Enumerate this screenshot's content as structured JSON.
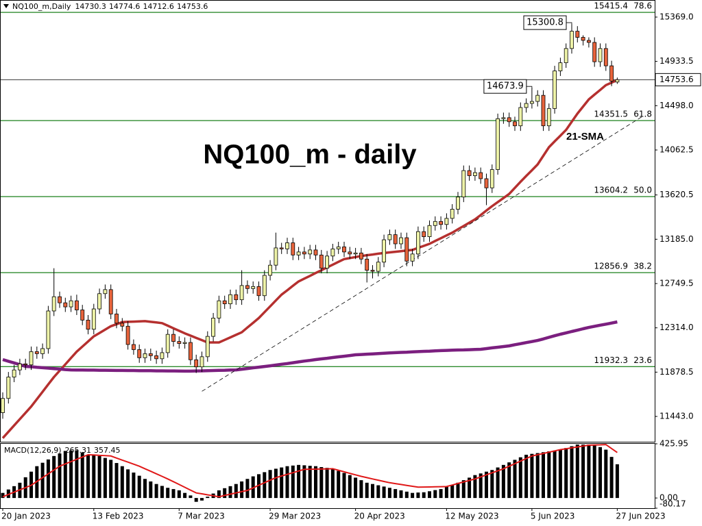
{
  "chart_data": [
    {
      "type": "candlestick",
      "title": "NQ100_m - daily",
      "symbol": "NQ100_m,Daily",
      "up_color": "#eef3a8",
      "down_color": "#e8643c",
      "fib_color": "#2e8b2e",
      "categories": [
        "20 Jan 2023",
        null,
        null,
        null,
        null,
        null,
        null,
        null,
        null,
        null,
        null,
        null,
        null,
        null,
        null,
        null,
        "13 Feb 2023",
        null,
        null,
        null,
        null,
        null,
        null,
        null,
        null,
        null,
        null,
        null,
        null,
        null,
        null,
        "7 Mar 2023",
        null,
        null,
        null,
        null,
        null,
        null,
        null,
        null,
        null,
        null,
        null,
        null,
        null,
        null,
        null,
        "29 Mar 2023",
        null,
        null,
        null,
        null,
        null,
        null,
        null,
        null,
        null,
        null,
        null,
        null,
        null,
        null,
        "20 Apr 2023",
        null,
        null,
        null,
        null,
        null,
        null,
        null,
        null,
        null,
        null,
        null,
        null,
        null,
        null,
        null,
        "12 May 2023",
        null,
        null,
        null,
        null,
        null,
        null,
        null,
        null,
        null,
        null,
        null,
        null,
        null,
        null,
        "5 Jun 2023",
        null,
        null,
        null,
        null,
        null,
        null,
        null,
        null,
        null,
        null,
        null,
        null,
        null,
        null,
        "27 Jun 2023"
      ],
      "open": [
        11480,
        11620,
        11830,
        11900,
        11960,
        11950,
        12080,
        12060,
        12110,
        12480,
        12620,
        12560,
        12520,
        12580,
        12490,
        12390,
        12300,
        12500,
        12650,
        12690,
        12450,
        12360,
        12330,
        12150,
        12100,
        12020,
        12060,
        12040,
        12010,
        12070,
        12250,
        12180,
        12160,
        12170,
        12000,
        11930,
        12030,
        12230,
        12410,
        12580,
        12550,
        12640,
        12590,
        12730,
        12700,
        12720,
        12630,
        12830,
        12930,
        13100,
        13090,
        13150,
        13030,
        13060,
        13040,
        13080,
        13030,
        12900,
        13020,
        13090,
        13110,
        13060,
        13040,
        13050,
        12990,
        12880,
        12870,
        12960,
        13180,
        13230,
        13140,
        13200,
        12970,
        13040,
        13260,
        13210,
        13320,
        13360,
        13330,
        13390,
        13480,
        13600,
        13860,
        13810,
        13840,
        13780,
        13690,
        13870,
        14370,
        14380,
        14340,
        14300,
        14480,
        14520,
        14540,
        14600,
        14300,
        14470,
        14840,
        14920,
        15060,
        15230,
        15170,
        15140,
        15120,
        14930,
        15060,
        14890,
        14730.3
      ],
      "high": [
        11680,
        11880,
        11950,
        12010,
        12010,
        12130,
        12130,
        12160,
        12530,
        12900,
        12670,
        12610,
        12630,
        12640,
        12540,
        12440,
        12550,
        12700,
        12740,
        12740,
        12500,
        12410,
        12380,
        12200,
        12150,
        12110,
        12110,
        12090,
        12120,
        12300,
        12300,
        12230,
        12220,
        12220,
        12050,
        12080,
        12280,
        12460,
        12630,
        12630,
        12690,
        12690,
        12880,
        12780,
        12770,
        12770,
        12880,
        12980,
        13250,
        13150,
        13200,
        13200,
        13110,
        13110,
        13130,
        13130,
        13080,
        13070,
        13140,
        13160,
        13160,
        13110,
        13100,
        13100,
        13040,
        12930,
        13010,
        13230,
        13280,
        13280,
        13250,
        13250,
        13090,
        13310,
        13310,
        13370,
        13410,
        13410,
        13440,
        13530,
        13650,
        13910,
        13910,
        13890,
        13890,
        13830,
        13920,
        14420,
        14430,
        14430,
        14390,
        14530,
        14570,
        14673.9,
        14650,
        14650,
        14520,
        14890,
        14970,
        15110,
        15300.8,
        15280,
        15190,
        15170,
        15170,
        15110,
        15110,
        14940,
        14774.6
      ],
      "low": [
        11420,
        11570,
        11780,
        11850,
        11900,
        11900,
        12010,
        12010,
        12060,
        12430,
        12510,
        12470,
        12470,
        12440,
        12340,
        12250,
        12250,
        12450,
        12600,
        12400,
        12310,
        12280,
        12100,
        12050,
        11970,
        11970,
        11990,
        11960,
        11960,
        12020,
        12130,
        12110,
        12110,
        11950,
        11870,
        11880,
        11980,
        12180,
        12360,
        12500,
        12500,
        12540,
        12540,
        12650,
        12650,
        12580,
        12580,
        12780,
        12880,
        13040,
        13040,
        12980,
        12980,
        12990,
        12990,
        12980,
        12850,
        12850,
        12970,
        13040,
        13010,
        12990,
        12990,
        12940,
        12760,
        12800,
        12820,
        12910,
        13130,
        13090,
        13090,
        12920,
        12920,
        12990,
        13160,
        13160,
        13270,
        13280,
        13280,
        13340,
        13430,
        13550,
        13760,
        13760,
        13730,
        13520,
        13640,
        13820,
        14320,
        14290,
        14250,
        14250,
        14430,
        14470,
        14490,
        14250,
        14250,
        14420,
        14790,
        14870,
        15010,
        15120,
        15090,
        15070,
        14880,
        14880,
        14840,
        14690,
        14712.6
      ],
      "close": [
        11620,
        11830,
        11900,
        11960,
        11950,
        12080,
        12060,
        12110,
        12480,
        12620,
        12560,
        12520,
        12580,
        12490,
        12390,
        12300,
        12500,
        12650,
        12690,
        12450,
        12360,
        12330,
        12150,
        12100,
        12020,
        12060,
        12040,
        12010,
        12070,
        12250,
        12180,
        12160,
        12170,
        12000,
        11930,
        12030,
        12230,
        12410,
        12580,
        12550,
        12640,
        12590,
        12730,
        12700,
        12720,
        12630,
        12830,
        12930,
        13100,
        13090,
        13150,
        13030,
        13060,
        13040,
        13080,
        13030,
        12900,
        13020,
        13090,
        13110,
        13060,
        13040,
        13050,
        12990,
        12880,
        12870,
        12960,
        13180,
        13230,
        13140,
        13200,
        12970,
        13040,
        13260,
        13210,
        13320,
        13360,
        13330,
        13390,
        13480,
        13600,
        13860,
        13810,
        13840,
        13780,
        13690,
        13870,
        14370,
        14380,
        14340,
        14300,
        14480,
        14520,
        14540,
        14600,
        14300,
        14470,
        14840,
        14920,
        15060,
        15230,
        15170,
        15140,
        15120,
        14930,
        15060,
        14890,
        14740,
        14753.6
      ],
      "series": [
        {
          "name": "21-SMA",
          "color": "#b5302f",
          "values": [
            11230,
            11292,
            11354,
            11416,
            11478,
            11540,
            11613,
            11685,
            11758,
            11830,
            11893,
            11955,
            12018,
            12080,
            12130,
            12180,
            12230,
            12263,
            12297,
            12330,
            12350,
            12370,
            12373,
            12375,
            12378,
            12380,
            12373,
            12367,
            12360,
            12335,
            12310,
            12285,
            12260,
            12238,
            12215,
            12193,
            12170,
            12170,
            12170,
            12195,
            12220,
            12245,
            12270,
            12317,
            12363,
            12410,
            12468,
            12525,
            12583,
            12640,
            12683,
            12727,
            12770,
            12798,
            12825,
            12853,
            12880,
            12908,
            12935,
            12963,
            12990,
            13000,
            13010,
            13020,
            13028,
            13035,
            13043,
            13050,
            13056,
            13062,
            13068,
            13074,
            13080,
            13100,
            13120,
            13140,
            13168,
            13195,
            13223,
            13250,
            13283,
            13315,
            13348,
            13380,
            13423,
            13467,
            13510,
            13550,
            13590,
            13630,
            13690,
            13750,
            13807,
            13863,
            13920,
            14005,
            14090,
            14147,
            14203,
            14260,
            14340,
            14420,
            14490,
            14560,
            14607,
            14653,
            14700,
            14725,
            14750
          ]
        },
        {
          "color": "#7b1f7f",
          "values": [
            12002,
            11985,
            11969,
            11952,
            11935,
            11931,
            11926,
            11922,
            11918,
            11913,
            11909,
            11904,
            11900,
            11899,
            11899,
            11898,
            11898,
            11897,
            11897,
            11896,
            11895,
            11895,
            11894,
            11894,
            11893,
            11892,
            11892,
            11891,
            11891,
            11890,
            11890,
            11889,
            11888,
            11888,
            11890,
            11891,
            11893,
            11894,
            11896,
            11897,
            11899,
            11900,
            11907,
            11914,
            11921,
            11927,
            11934,
            11941,
            11948,
            11956,
            11963,
            11971,
            11979,
            11987,
            11994,
            12002,
            12009,
            12015,
            12022,
            12029,
            12035,
            12042,
            12049,
            12052,
            12055,
            12058,
            12061,
            12064,
            12067,
            12070,
            12073,
            12075,
            12078,
            12080,
            12083,
            12085,
            12088,
            12090,
            12092,
            12094,
            12096,
            12097,
            12099,
            12101,
            12103,
            12110,
            12117,
            12123,
            12130,
            12137,
            12148,
            12158,
            12169,
            12179,
            12190,
            12205,
            12221,
            12236,
            12251,
            12264,
            12278,
            12291,
            12305,
            12318,
            12329,
            12340,
            12350,
            12361,
            12372
          ]
        }
      ],
      "fib_levels": [
        {
          "price": 15415.4,
          "ratio": 78.6
        },
        {
          "price": 14351.5,
          "ratio": 61.8
        },
        {
          "price": 13604.2,
          "ratio": {
            "value": 50,
            "label": "50.0"
          }
        },
        {
          "price": 12856.9,
          "ratio": 38.2
        },
        {
          "price": 11932.3,
          "ratio": 23.6
        }
      ],
      "trendline": {
        "x": [
          35,
          112.5
        ],
        "y": [
          11690,
          14395
        ]
      },
      "ylim": [
        11194,
        15537
      ],
      "yticks": [
        {
          "value": 15369,
          "label": "15369.0"
        },
        14933.5,
        {
          "value": 14498,
          "label": "14498.0"
        },
        14062.5,
        13620.5,
        {
          "value": 13185,
          "label": "13185.0"
        },
        12749.5,
        {
          "value": 12314,
          "label": "12314.0"
        },
        11878.5,
        {
          "value": 11443,
          "label": "11443.0"
        }
      ]
    },
    {
      "type": "macd",
      "label": "MACD(12,26,9)",
      "histogram": {
        "color": "#000000",
        "values": [
          40,
          67,
          93,
          120,
          163,
          207,
          250,
          277,
          303,
          330,
          350,
          370,
          373,
          375,
          358,
          340,
          335,
          330,
          315,
          300,
          275,
          250,
          225,
          200,
          175,
          150,
          130,
          110,
          95,
          80,
          70,
          60,
          40,
          20,
          -30,
          -20,
          10,
          35,
          60,
          77,
          93,
          110,
          130,
          150,
          170,
          187,
          203,
          220,
          230,
          240,
          250,
          255,
          260,
          257,
          253,
          250,
          243,
          237,
          230,
          213,
          197,
          180,
          160,
          140,
          120,
          110,
          100,
          90,
          80,
          70,
          60,
          50,
          40,
          43,
          45,
          53,
          62,
          70,
          87,
          103,
          120,
          140,
          160,
          180,
          193,
          207,
          220,
          240,
          260,
          280,
          300,
          320,
          340,
          347,
          353,
          360,
          367,
          373,
          380,
          393,
          407,
          420,
          420,
          420,
          420,
          400,
          380,
          323,
          265.31
        ]
      },
      "signal": {
        "color": "#e01818",
        "values": [
          10,
          28,
          46,
          64,
          82,
          100,
          130,
          160,
          190,
          220,
          250,
          268,
          286,
          304,
          322,
          340,
          338,
          335,
          333,
          330,
          314,
          298,
          282,
          266,
          250,
          230,
          210,
          190,
          170,
          150,
          128,
          106,
          84,
          62,
          40,
          33,
          25,
          18,
          10,
          20,
          30,
          40,
          50,
          60,
          80,
          100,
          120,
          140,
          160,
          173,
          186,
          199,
          212,
          225,
          226,
          227,
          228,
          229,
          230,
          218,
          206,
          194,
          182,
          170,
          160,
          150,
          140,
          130,
          120,
          113,
          106,
          99,
          92,
          85,
          86,
          87,
          88,
          89,
          90,
          102,
          114,
          126,
          138,
          150,
          166,
          182,
          198,
          214,
          230,
          250,
          270,
          290,
          310,
          330,
          340,
          350,
          360,
          370,
          380,
          387,
          394,
          401,
          408,
          415,
          417,
          418,
          420,
          389,
          357.45
        ]
      },
      "ylim": [
        -80.17,
        425.95
      ],
      "yticks": [
        425.95,
        {
          "value": 0,
          "label": "0.00"
        },
        -80.17
      ]
    }
  ]
}
